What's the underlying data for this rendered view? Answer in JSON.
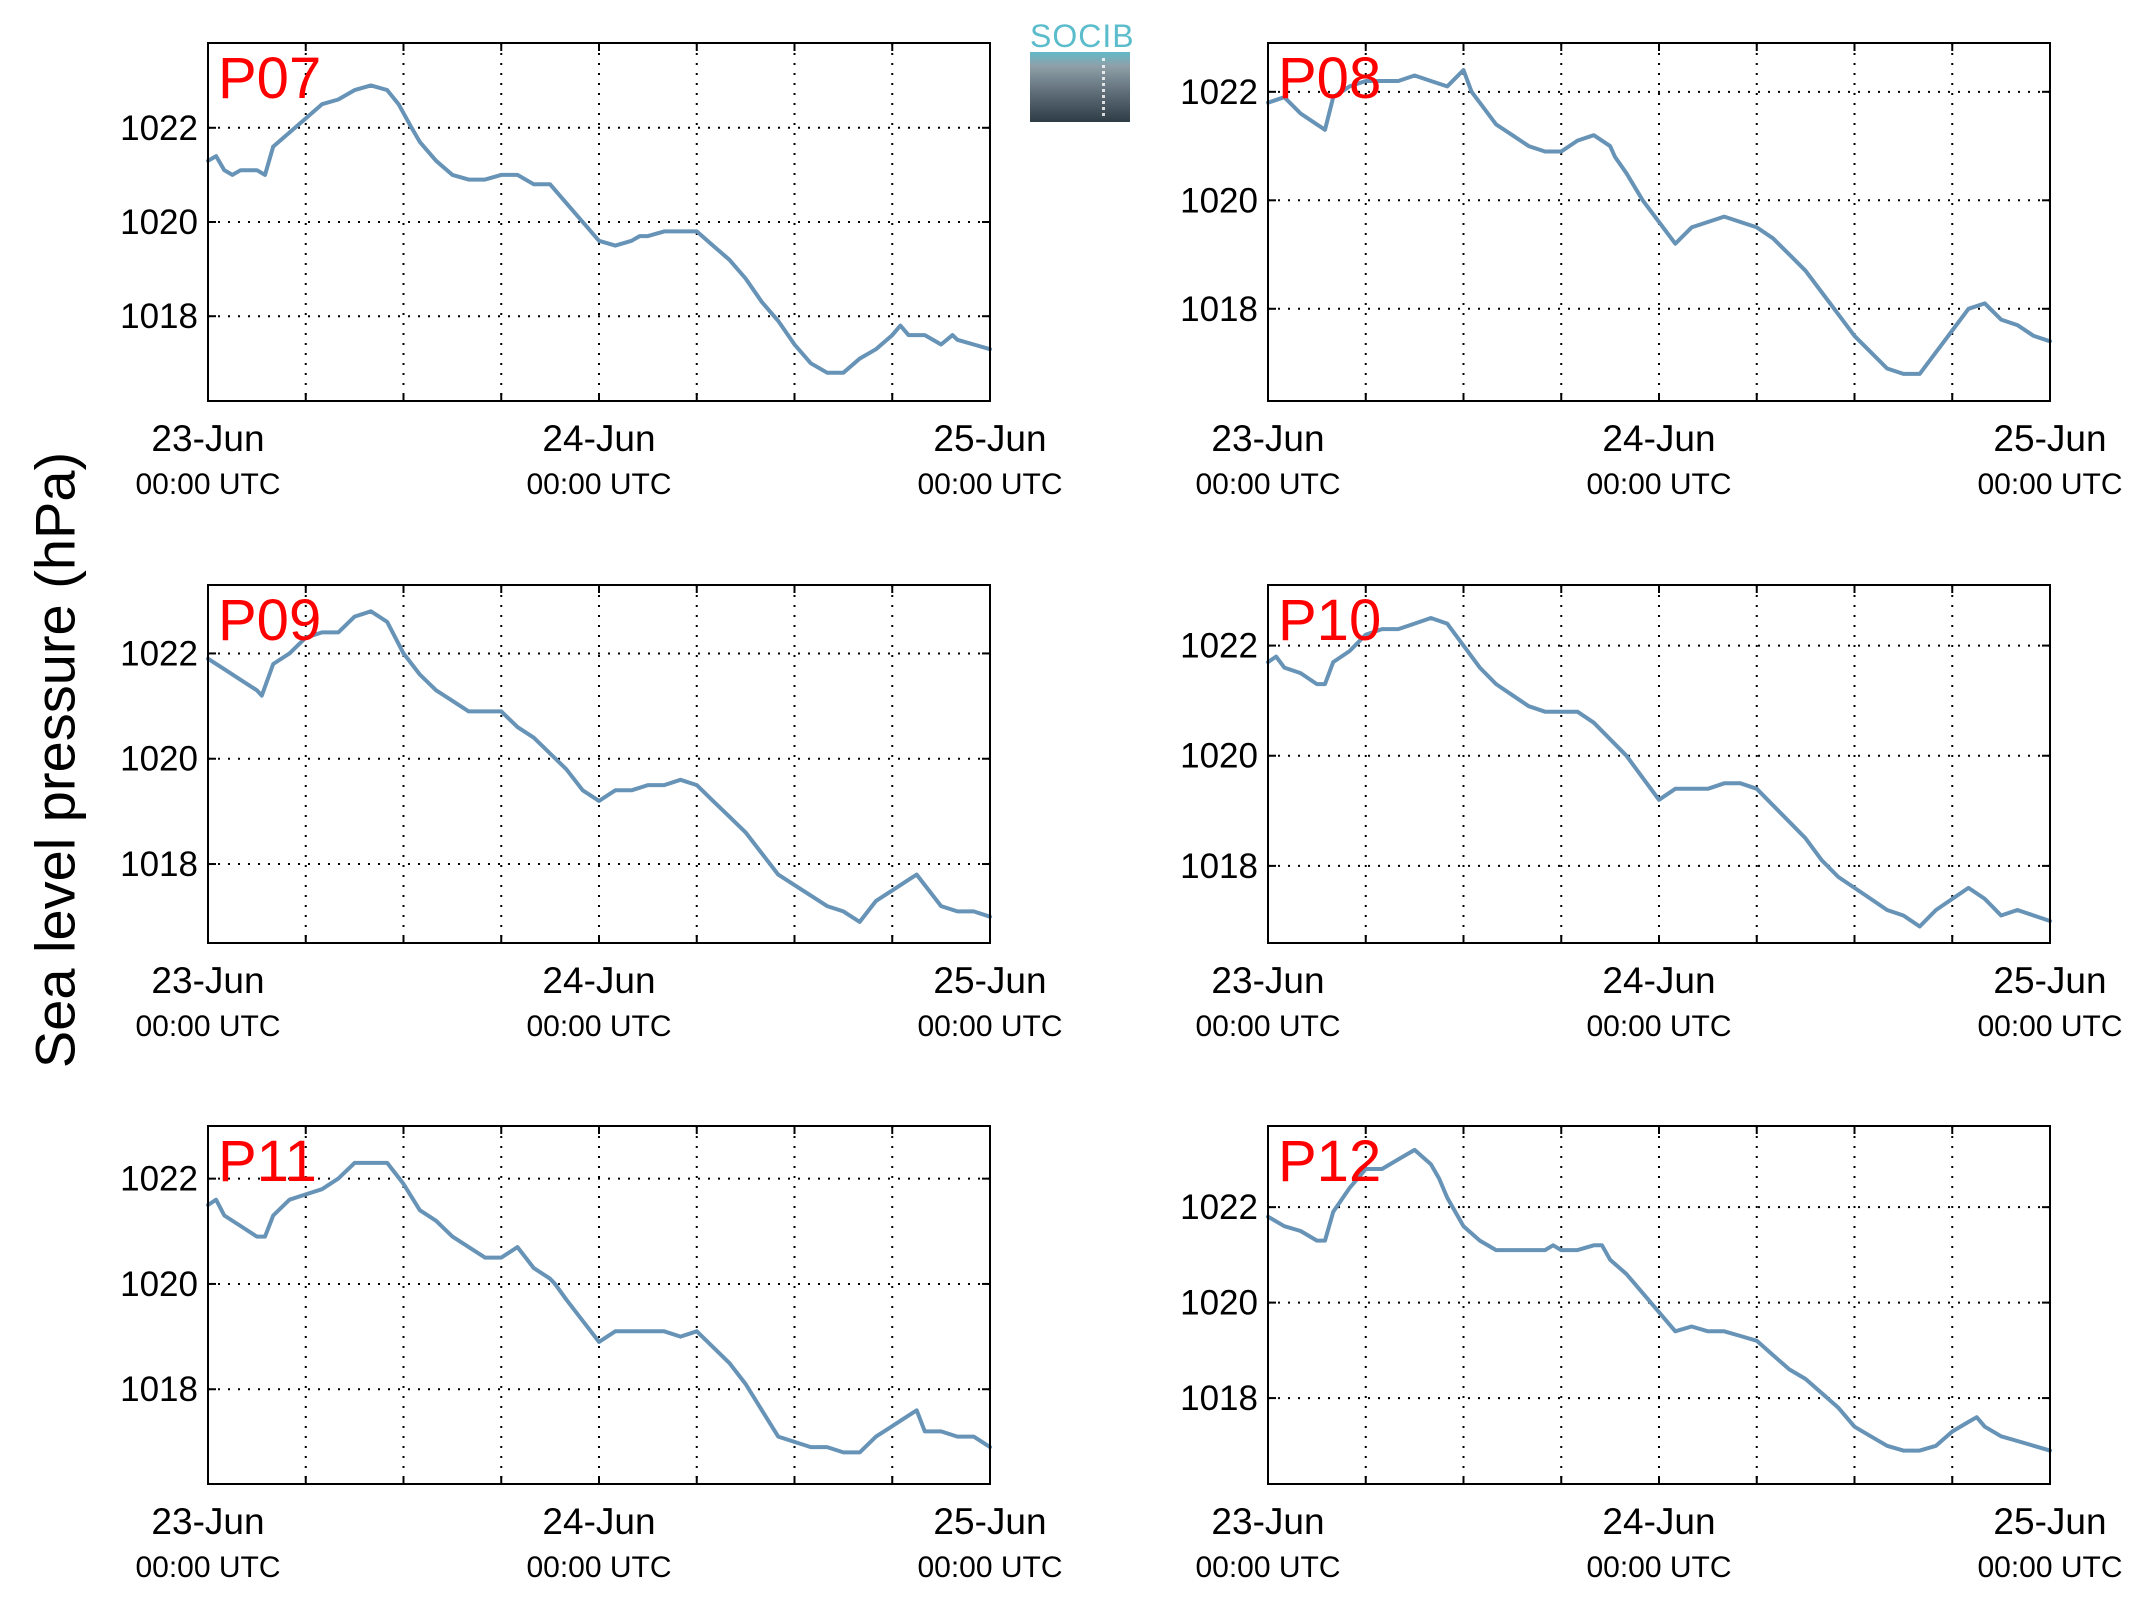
{
  "figure": {
    "ylabel": "Sea level pressure (hPa)",
    "logo_text": "SOCIB"
  },
  "chart_data": [
    {
      "type": "line",
      "title": "P07",
      "xlim": [
        0,
        48
      ],
      "ylim": [
        1016.2,
        1023.8
      ],
      "yticks": [
        1018,
        1020,
        1022
      ],
      "xticks": [
        0,
        6,
        12,
        18,
        24,
        30,
        36,
        42,
        48
      ],
      "xticklabels": [
        {
          "x": 0,
          "top": "23-Jun",
          "bottom": "00:00 UTC"
        },
        {
          "x": 24,
          "top": "24-Jun",
          "bottom": "00:00 UTC"
        },
        {
          "x": 48,
          "top": "25-Jun",
          "bottom": "00:00 UTC"
        }
      ],
      "grid": true,
      "series": [
        {
          "x": [
            0,
            0.5,
            1,
            1.5,
            2,
            2.5,
            3,
            3.5,
            4,
            5,
            6,
            7,
            8,
            9,
            10,
            11,
            11.7,
            12.5,
            13,
            14,
            15,
            16,
            17,
            18,
            19,
            20,
            21,
            22,
            23,
            24,
            25,
            26,
            26.5,
            27,
            28,
            29,
            30,
            31,
            32,
            33,
            34,
            35,
            36,
            37,
            38,
            39,
            40,
            41,
            42,
            42.5,
            43,
            44,
            45,
            45.7,
            46,
            47,
            48
          ],
          "y": [
            1021.3,
            1021.4,
            1021.1,
            1021.0,
            1021.1,
            1021.1,
            1021.1,
            1021.0,
            1021.6,
            1021.9,
            1022.2,
            1022.5,
            1022.6,
            1022.8,
            1022.9,
            1022.8,
            1022.5,
            1022.0,
            1021.7,
            1021.3,
            1021.0,
            1020.9,
            1020.9,
            1021.0,
            1021.0,
            1020.8,
            1020.8,
            1020.4,
            1020.0,
            1019.6,
            1019.5,
            1019.6,
            1019.7,
            1019.7,
            1019.8,
            1019.8,
            1019.8,
            1019.5,
            1019.2,
            1018.8,
            1018.3,
            1017.9,
            1017.4,
            1017.0,
            1016.8,
            1016.8,
            1017.1,
            1017.3,
            1017.6,
            1017.8,
            1017.6,
            1017.6,
            1017.4,
            1017.6,
            1017.5,
            1017.4,
            1017.3
          ]
        }
      ]
    },
    {
      "type": "line",
      "title": "P08",
      "xlim": [
        0,
        48
      ],
      "ylim": [
        1016.3,
        1022.9
      ],
      "yticks": [
        1018,
        1020,
        1022
      ],
      "xticks": [
        0,
        6,
        12,
        18,
        24,
        30,
        36,
        42,
        48
      ],
      "xticklabels": [
        {
          "x": 0,
          "top": "23-Jun",
          "bottom": "00:00 UTC"
        },
        {
          "x": 24,
          "top": "24-Jun",
          "bottom": "00:00 UTC"
        },
        {
          "x": 48,
          "top": "25-Jun",
          "bottom": "00:00 UTC"
        }
      ],
      "grid": true,
      "series": [
        {
          "x": [
            0,
            1,
            2,
            3,
            3.5,
            4,
            5,
            6,
            7,
            8,
            9,
            10,
            11,
            12,
            12.5,
            13,
            14,
            15,
            16,
            17,
            18,
            19,
            20,
            21,
            21.3,
            22,
            23,
            24,
            25,
            26,
            27,
            28,
            29,
            30,
            31,
            32,
            33,
            34,
            35,
            36,
            37,
            38,
            39,
            40,
            41,
            42,
            43,
            44,
            45,
            46,
            47,
            48
          ],
          "y": [
            1021.8,
            1021.9,
            1021.6,
            1021.4,
            1021.3,
            1021.9,
            1022.1,
            1022.2,
            1022.2,
            1022.2,
            1022.3,
            1022.2,
            1022.1,
            1022.4,
            1022.0,
            1021.8,
            1021.4,
            1021.2,
            1021.0,
            1020.9,
            1020.9,
            1021.1,
            1021.2,
            1021.0,
            1020.8,
            1020.5,
            1020.0,
            1019.6,
            1019.2,
            1019.5,
            1019.6,
            1019.7,
            1019.6,
            1019.5,
            1019.3,
            1019.0,
            1018.7,
            1018.3,
            1017.9,
            1017.5,
            1017.2,
            1016.9,
            1016.8,
            1016.8,
            1017.2,
            1017.6,
            1018.0,
            1018.1,
            1017.8,
            1017.7,
            1017.5,
            1017.4
          ]
        }
      ]
    },
    {
      "type": "line",
      "title": "P09",
      "xlim": [
        0,
        48
      ],
      "ylim": [
        1016.5,
        1023.3
      ],
      "yticks": [
        1018,
        1020,
        1022
      ],
      "xticks": [
        0,
        6,
        12,
        18,
        24,
        30,
        36,
        42,
        48
      ],
      "xticklabels": [
        {
          "x": 0,
          "top": "23-Jun",
          "bottom": "00:00 UTC"
        },
        {
          "x": 24,
          "top": "24-Jun",
          "bottom": "00:00 UTC"
        },
        {
          "x": 48,
          "top": "25-Jun",
          "bottom": "00:00 UTC"
        }
      ],
      "grid": true,
      "series": [
        {
          "x": [
            0,
            1,
            2,
            3,
            3.3,
            4,
            5,
            6,
            7,
            8,
            9,
            10,
            11,
            12,
            13,
            14,
            15,
            16,
            17,
            18,
            19,
            20,
            21,
            22,
            23,
            24,
            25,
            26,
            27,
            28,
            29,
            30,
            31,
            32,
            33,
            34,
            35,
            36,
            37,
            38,
            39,
            40,
            41,
            42,
            43,
            43.5,
            44,
            45,
            46,
            47,
            48
          ],
          "y": [
            1021.9,
            1021.7,
            1021.5,
            1021.3,
            1021.2,
            1021.8,
            1022.0,
            1022.3,
            1022.4,
            1022.4,
            1022.7,
            1022.8,
            1022.6,
            1022.0,
            1021.6,
            1021.3,
            1021.1,
            1020.9,
            1020.9,
            1020.9,
            1020.6,
            1020.4,
            1020.1,
            1019.8,
            1019.4,
            1019.2,
            1019.4,
            1019.4,
            1019.5,
            1019.5,
            1019.6,
            1019.5,
            1019.2,
            1018.9,
            1018.6,
            1018.2,
            1017.8,
            1017.6,
            1017.4,
            1017.2,
            1017.1,
            1016.9,
            1017.3,
            1017.5,
            1017.7,
            1017.8,
            1017.6,
            1017.2,
            1017.1,
            1017.1,
            1017.0
          ]
        }
      ]
    },
    {
      "type": "line",
      "title": "P10",
      "xlim": [
        0,
        48
      ],
      "ylim": [
        1016.6,
        1023.1
      ],
      "yticks": [
        1018,
        1020,
        1022
      ],
      "xticks": [
        0,
        6,
        12,
        18,
        24,
        30,
        36,
        42,
        48
      ],
      "xticklabels": [
        {
          "x": 0,
          "top": "23-Jun",
          "bottom": "00:00 UTC"
        },
        {
          "x": 24,
          "top": "24-Jun",
          "bottom": "00:00 UTC"
        },
        {
          "x": 48,
          "top": "25-Jun",
          "bottom": "00:00 UTC"
        }
      ],
      "grid": true,
      "series": [
        {
          "x": [
            0,
            0.5,
            1,
            2,
            3,
            3.5,
            4,
            5,
            6,
            7,
            8,
            9,
            10,
            11,
            12,
            13,
            14,
            15,
            16,
            17,
            18,
            19,
            20,
            21,
            22,
            23,
            24,
            25,
            26,
            27,
            28,
            29,
            30,
            31,
            32,
            33,
            34,
            35,
            36,
            37,
            38,
            39,
            40,
            41,
            42,
            43,
            44,
            45,
            46,
            47,
            48
          ],
          "y": [
            1021.7,
            1021.8,
            1021.6,
            1021.5,
            1021.3,
            1021.3,
            1021.7,
            1021.9,
            1022.2,
            1022.3,
            1022.3,
            1022.4,
            1022.5,
            1022.4,
            1022.0,
            1021.6,
            1021.3,
            1021.1,
            1020.9,
            1020.8,
            1020.8,
            1020.8,
            1020.6,
            1020.3,
            1020.0,
            1019.6,
            1019.2,
            1019.4,
            1019.4,
            1019.4,
            1019.5,
            1019.5,
            1019.4,
            1019.1,
            1018.8,
            1018.5,
            1018.1,
            1017.8,
            1017.6,
            1017.4,
            1017.2,
            1017.1,
            1016.9,
            1017.2,
            1017.4,
            1017.6,
            1017.4,
            1017.1,
            1017.2,
            1017.1,
            1017.0
          ]
        }
      ]
    },
    {
      "type": "line",
      "title": "P11",
      "xlim": [
        0,
        48
      ],
      "ylim": [
        1016.2,
        1023.0
      ],
      "yticks": [
        1018,
        1020,
        1022
      ],
      "xticks": [
        0,
        6,
        12,
        18,
        24,
        30,
        36,
        42,
        48
      ],
      "xticklabels": [
        {
          "x": 0,
          "top": "23-Jun",
          "bottom": "00:00 UTC"
        },
        {
          "x": 24,
          "top": "24-Jun",
          "bottom": "00:00 UTC"
        },
        {
          "x": 48,
          "top": "25-Jun",
          "bottom": "00:00 UTC"
        }
      ],
      "grid": true,
      "series": [
        {
          "x": [
            0,
            0.5,
            1,
            2,
            3,
            3.5,
            4,
            5,
            6,
            7,
            8,
            9,
            10,
            11,
            12,
            13,
            14,
            15,
            16,
            17,
            18,
            19,
            20,
            21,
            21.3,
            22,
            23,
            24,
            25,
            26,
            27,
            28,
            29,
            30,
            31,
            32,
            33,
            34,
            35,
            36,
            37,
            38,
            39,
            40,
            41,
            42,
            43,
            43.5,
            44,
            45,
            46,
            47,
            48
          ],
          "y": [
            1021.5,
            1021.6,
            1021.3,
            1021.1,
            1020.9,
            1020.9,
            1021.3,
            1021.6,
            1021.7,
            1021.8,
            1022.0,
            1022.3,
            1022.3,
            1022.3,
            1021.9,
            1021.4,
            1021.2,
            1020.9,
            1020.7,
            1020.5,
            1020.5,
            1020.7,
            1020.3,
            1020.1,
            1020.0,
            1019.7,
            1019.3,
            1018.9,
            1019.1,
            1019.1,
            1019.1,
            1019.1,
            1019.0,
            1019.1,
            1018.8,
            1018.5,
            1018.1,
            1017.6,
            1017.1,
            1017.0,
            1016.9,
            1016.9,
            1016.8,
            1016.8,
            1017.1,
            1017.3,
            1017.5,
            1017.6,
            1017.2,
            1017.2,
            1017.1,
            1017.1,
            1016.9
          ]
        }
      ]
    },
    {
      "type": "line",
      "title": "P12",
      "xlim": [
        0,
        48
      ],
      "ylim": [
        1016.2,
        1023.7
      ],
      "yticks": [
        1018,
        1020,
        1022
      ],
      "xticks": [
        0,
        6,
        12,
        18,
        24,
        30,
        36,
        42,
        48
      ],
      "xticklabels": [
        {
          "x": 0,
          "top": "23-Jun",
          "bottom": "00:00 UTC"
        },
        {
          "x": 24,
          "top": "24-Jun",
          "bottom": "00:00 UTC"
        },
        {
          "x": 48,
          "top": "25-Jun",
          "bottom": "00:00 UTC"
        }
      ],
      "grid": true,
      "series": [
        {
          "x": [
            0,
            1,
            2,
            3,
            3.5,
            4,
            5,
            6,
            7,
            8,
            9,
            10,
            10.5,
            11,
            12,
            13,
            14,
            15,
            16,
            17,
            17.5,
            18,
            19,
            20,
            20.5,
            21,
            22,
            23,
            24,
            25,
            26,
            27,
            28,
            29,
            30,
            31,
            32,
            33,
            34,
            35,
            36,
            37,
            38,
            39,
            40,
            41,
            42,
            43,
            43.5,
            44,
            45,
            46,
            47,
            48
          ],
          "y": [
            1021.8,
            1021.6,
            1021.5,
            1021.3,
            1021.3,
            1021.9,
            1022.4,
            1022.8,
            1022.8,
            1023.0,
            1023.2,
            1022.9,
            1022.6,
            1022.2,
            1021.6,
            1021.3,
            1021.1,
            1021.1,
            1021.1,
            1021.1,
            1021.2,
            1021.1,
            1021.1,
            1021.2,
            1021.2,
            1020.9,
            1020.6,
            1020.2,
            1019.8,
            1019.4,
            1019.5,
            1019.4,
            1019.4,
            1019.3,
            1019.2,
            1018.9,
            1018.6,
            1018.4,
            1018.1,
            1017.8,
            1017.4,
            1017.2,
            1017.0,
            1016.9,
            1016.9,
            1017.0,
            1017.3,
            1017.5,
            1017.6,
            1017.4,
            1017.2,
            1017.1,
            1017.0,
            1016.9
          ]
        }
      ]
    }
  ]
}
